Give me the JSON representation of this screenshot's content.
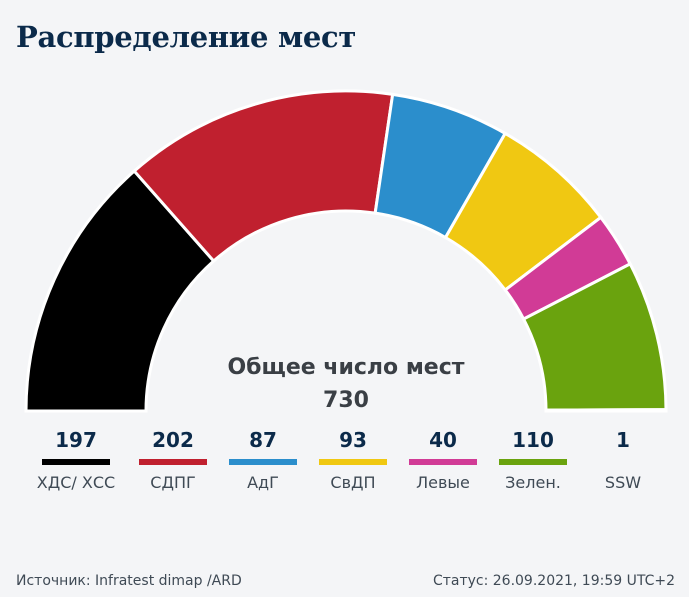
{
  "title": "Распределение мест",
  "total_label": "Общее число мест",
  "total_value": "730",
  "footer": {
    "source": "Источник: Infratest dimap /ARD",
    "status": "Статус: 26.09.2021, 19:59 UTC+2"
  },
  "chart_data": {
    "type": "pie",
    "subtype": "half-donut (parliament seat distribution)",
    "title": "Распределение мест",
    "total": 730,
    "series": [
      {
        "name": "ХДС/ ХСС",
        "value": 197,
        "color": "#000000"
      },
      {
        "name": "СДПГ",
        "value": 202,
        "color": "#c0202f"
      },
      {
        "name": "АдГ",
        "value": 87,
        "color": "#2b8ecc"
      },
      {
        "name": "СвДП",
        "value": 93,
        "color": "#f0c812"
      },
      {
        "name": "Левые",
        "value": 40,
        "color": "#d13b96"
      },
      {
        "name": "Зелен.",
        "value": 110,
        "color": "#6aa30e"
      },
      {
        "name": "SSW",
        "value": 1,
        "color": "#b8c0c8"
      }
    ]
  }
}
